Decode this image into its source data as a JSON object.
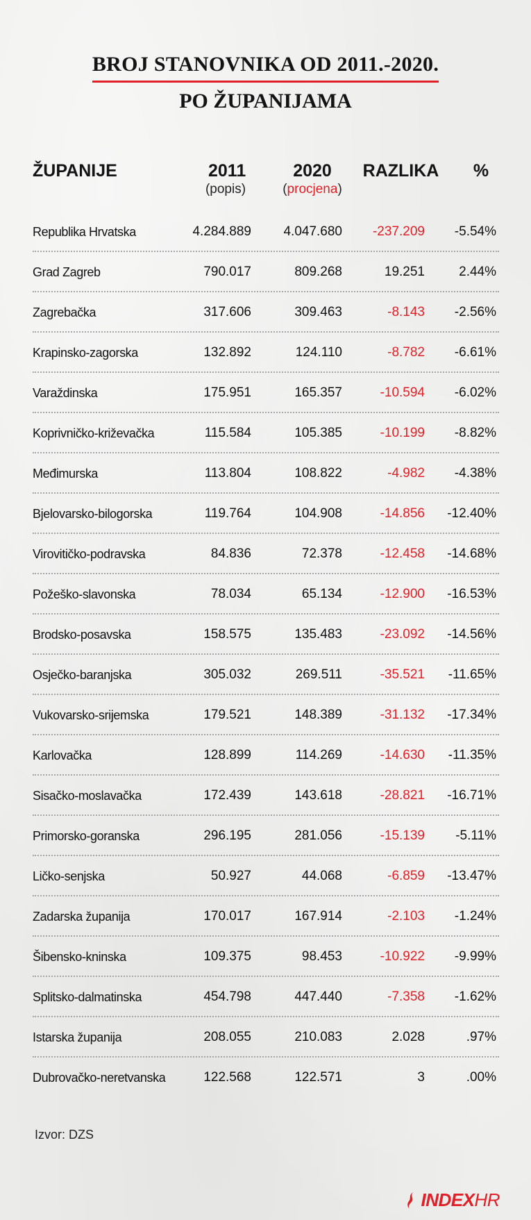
{
  "title": {
    "line1": "BROJ STANOVNIKA OD 2011.-2020.",
    "line2": "PO ŽUPANIJAMA"
  },
  "headers": {
    "name": "ŽUPANIJE",
    "y2011": "2011",
    "y2011_sub": "popis",
    "y2020": "2020",
    "y2020_sub": "procjena",
    "diff": "RAZLIKA",
    "pct": "%"
  },
  "colors": {
    "accent": "#e01f26",
    "negative": "#e01f26",
    "text": "#141414"
  },
  "chart_data": {
    "type": "table",
    "columns": [
      "ŽUPANIJE",
      "2011 (popis)",
      "2020 (procjena)",
      "RAZLIKA",
      "%"
    ],
    "rows": [
      {
        "name": "Republika Hrvatska",
        "y2011": "4.284.889",
        "y2020": "4.047.680",
        "diff": "-237.209",
        "pct": "-5.54%",
        "negative": true
      },
      {
        "name": "Grad Zagreb",
        "y2011": "790.017",
        "y2020": "809.268",
        "diff": "19.251",
        "pct": "2.44%",
        "negative": false
      },
      {
        "name": "Zagrebačka",
        "y2011": "317.606",
        "y2020": "309.463",
        "diff": "-8.143",
        "pct": "-2.56%",
        "negative": true
      },
      {
        "name": "Krapinsko-zagorska",
        "y2011": "132.892",
        "y2020": "124.110",
        "diff": "-8.782",
        "pct": "-6.61%",
        "negative": true
      },
      {
        "name": "Varaždinska",
        "y2011": "175.951",
        "y2020": "165.357",
        "diff": "-10.594",
        "pct": "-6.02%",
        "negative": true
      },
      {
        "name": "Koprivničko-križevačka",
        "y2011": "115.584",
        "y2020": "105.385",
        "diff": "-10.199",
        "pct": "-8.82%",
        "negative": true
      },
      {
        "name": "Međimurska",
        "y2011": "113.804",
        "y2020": "108.822",
        "diff": "-4.982",
        "pct": "-4.38%",
        "negative": true
      },
      {
        "name": "Bjelovarsko-bilogorska",
        "y2011": "119.764",
        "y2020": "104.908",
        "diff": "-14.856",
        "pct": "-12.40%",
        "negative": true
      },
      {
        "name": "Virovitičko-podravska",
        "y2011": "84.836",
        "y2020": "72.378",
        "diff": "-12.458",
        "pct": "-14.68%",
        "negative": true
      },
      {
        "name": "Požeško-slavonska",
        "y2011": "78.034",
        "y2020": "65.134",
        "diff": "-12.900",
        "pct": "-16.53%",
        "negative": true
      },
      {
        "name": "Brodsko-posavska",
        "y2011": "158.575",
        "y2020": "135.483",
        "diff": "-23.092",
        "pct": "-14.56%",
        "negative": true
      },
      {
        "name": "Osječko-baranjska",
        "y2011": "305.032",
        "y2020": "269.511",
        "diff": "-35.521",
        "pct": "-11.65%",
        "negative": true
      },
      {
        "name": "Vukovarsko-srijemska",
        "y2011": "179.521",
        "y2020": "148.389",
        "diff": "-31.132",
        "pct": "-17.34%",
        "negative": true
      },
      {
        "name": "Karlovačka",
        "y2011": "128.899",
        "y2020": "114.269",
        "diff": "-14.630",
        "pct": "-11.35%",
        "negative": true
      },
      {
        "name": "Sisačko-moslavačka",
        "y2011": "172.439",
        "y2020": "143.618",
        "diff": "-28.821",
        "pct": "-16.71%",
        "negative": true
      },
      {
        "name": "Primorsko-goranska",
        "y2011": "296.195",
        "y2020": "281.056",
        "diff": "-15.139",
        "pct": "-5.11%",
        "negative": true
      },
      {
        "name": "Ličko-senjska",
        "y2011": "50.927",
        "y2020": "44.068",
        "diff": "-6.859",
        "pct": "-13.47%",
        "negative": true
      },
      {
        "name": "Zadarska županija",
        "y2011": "170.017",
        "y2020": "167.914",
        "diff": "-2.103",
        "pct": "-1.24%",
        "negative": true
      },
      {
        "name": "Šibensko-kninska",
        "y2011": "109.375",
        "y2020": "98.453",
        "diff": "-10.922",
        "pct": "-9.99%",
        "negative": true
      },
      {
        "name": "Splitsko-dalmatinska",
        "y2011": "454.798",
        "y2020": "447.440",
        "diff": "-7.358",
        "pct": "-1.62%",
        "negative": true
      },
      {
        "name": "Istarska županija",
        "y2011": "208.055",
        "y2020": "210.083",
        "diff": "2.028",
        "pct": ".97%",
        "negative": false
      },
      {
        "name": "Dubrovačko-neretvanska",
        "y2011": "122.568",
        "y2020": "122.571",
        "diff": "3",
        "pct": ".00%",
        "negative": false
      }
    ]
  },
  "source": "Izvor: DZS",
  "logo": {
    "part1": "INDEX",
    "part2": "HR",
    "icon": "flame-logo-icon"
  }
}
